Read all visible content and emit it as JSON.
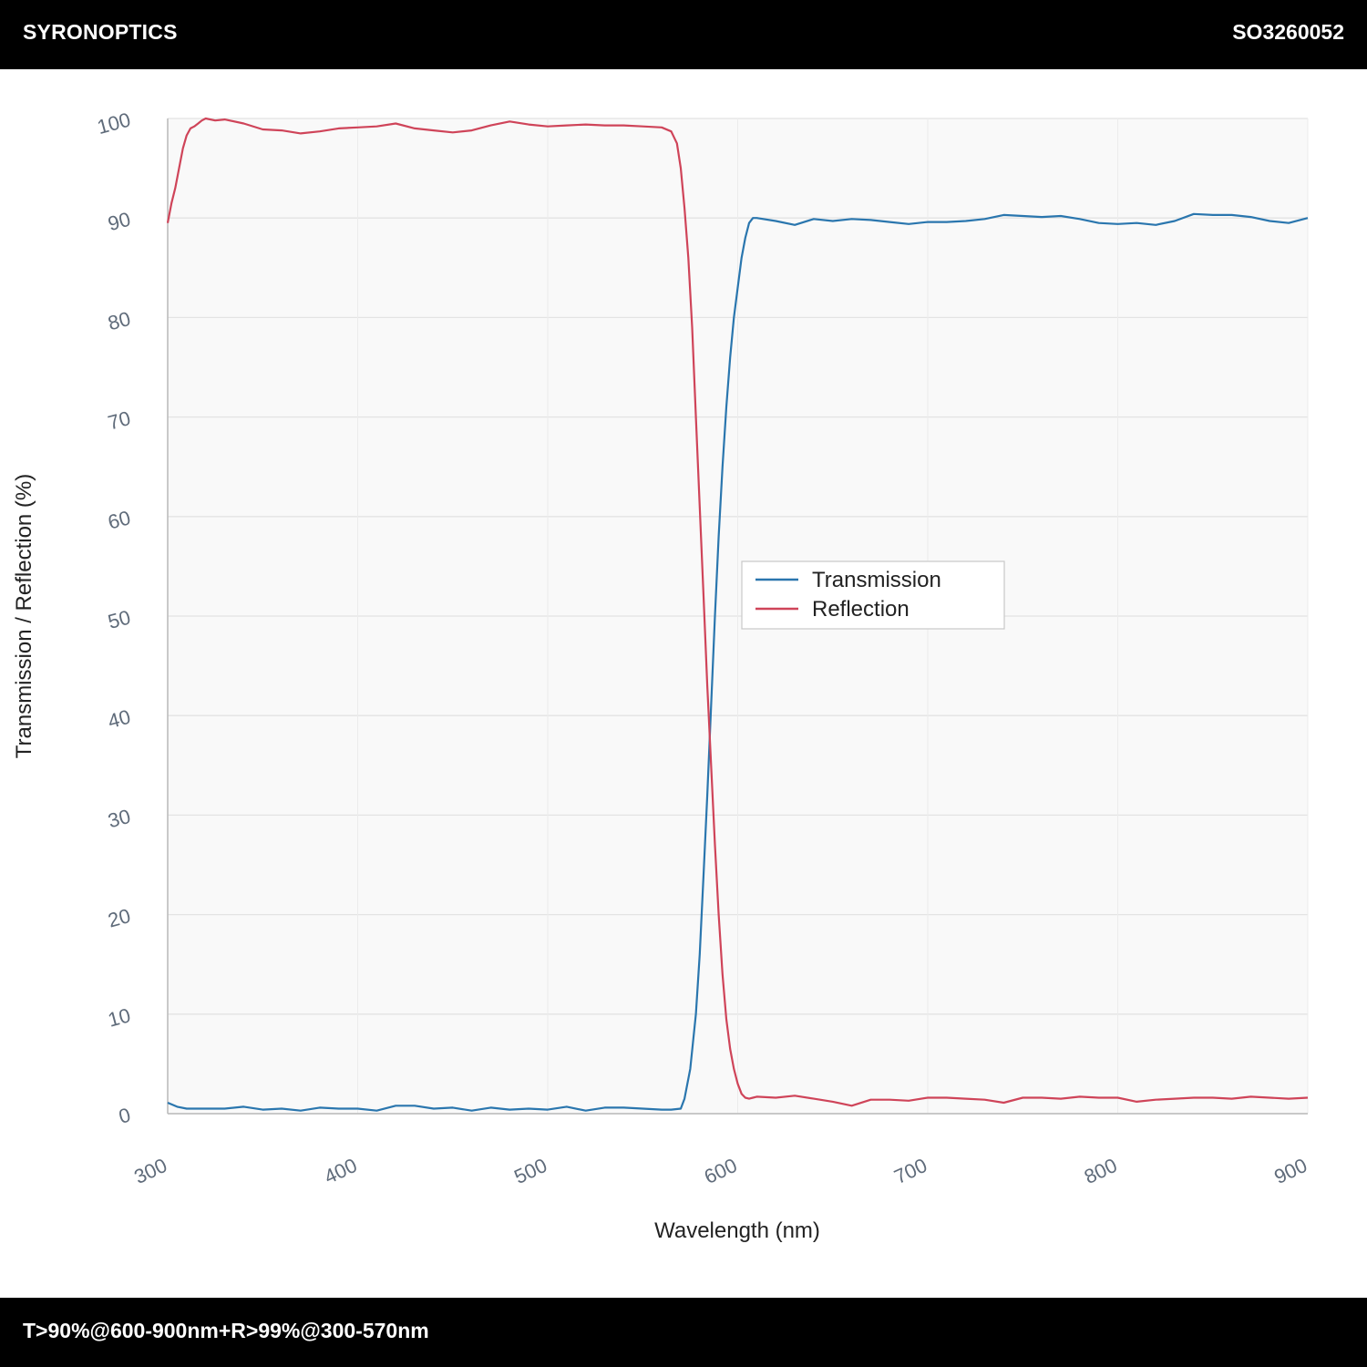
{
  "header": {
    "brand": "SYRONOPTICS",
    "code": "SO3260052"
  },
  "footer": {
    "spec": "T>90%@600-900nm+R>99%@300-570nm"
  },
  "colors": {
    "transmission": "#2a76ae",
    "reflection": "#cf4459",
    "plot_bg": "#f9f9f9",
    "grid": "#e3e3e3"
  },
  "chart_data": {
    "type": "line",
    "title": "",
    "xlabel": "Wavelength (nm)",
    "ylabel": "Transmission / Reflection (%)",
    "xlim": [
      300,
      900
    ],
    "ylim": [
      0,
      100
    ],
    "xticks": [
      300,
      400,
      500,
      600,
      700,
      800,
      900
    ],
    "yticks": [
      0,
      10,
      20,
      30,
      40,
      50,
      60,
      70,
      80,
      90,
      100
    ],
    "grid": true,
    "legend_position": "center-right",
    "series": [
      {
        "name": "Transmission",
        "color": "#2a76ae",
        "x": [
          300,
          305,
          310,
          320,
          330,
          340,
          350,
          360,
          370,
          380,
          390,
          400,
          410,
          420,
          430,
          440,
          450,
          460,
          470,
          480,
          490,
          500,
          510,
          520,
          530,
          540,
          550,
          560,
          565,
          570,
          572,
          575,
          578,
          580,
          582,
          584,
          586,
          588,
          590,
          592,
          594,
          596,
          598,
          600,
          602,
          604,
          606,
          608,
          610,
          620,
          630,
          640,
          650,
          660,
          670,
          680,
          690,
          700,
          710,
          720,
          730,
          740,
          750,
          760,
          770,
          780,
          790,
          800,
          810,
          820,
          830,
          840,
          850,
          860,
          870,
          880,
          890,
          900
        ],
        "values": [
          1.1,
          0.7,
          0.5,
          0.5,
          0.5,
          0.7,
          0.4,
          0.5,
          0.3,
          0.6,
          0.5,
          0.5,
          0.3,
          0.8,
          0.8,
          0.5,
          0.6,
          0.3,
          0.6,
          0.4,
          0.5,
          0.4,
          0.7,
          0.3,
          0.6,
          0.6,
          0.5,
          0.4,
          0.4,
          0.5,
          1.5,
          4.5,
          10,
          16,
          24,
          32,
          41,
          50,
          58,
          65,
          71,
          76,
          80,
          83,
          86,
          88,
          89.5,
          90,
          90,
          89.7,
          89.3,
          89.9,
          89.7,
          89.9,
          89.8,
          89.6,
          89.4,
          89.6,
          89.6,
          89.7,
          89.9,
          90.3,
          90.2,
          90.1,
          90.2,
          89.9,
          89.5,
          89.4,
          89.5,
          89.3,
          89.7,
          90.4,
          90.3,
          90.3,
          90.1,
          89.7,
          89.5,
          90
        ]
      },
      {
        "name": "Reflection",
        "color": "#cf4459",
        "x": [
          300,
          302,
          304,
          306,
          308,
          310,
          312,
          314,
          316,
          318,
          320,
          325,
          330,
          340,
          350,
          360,
          370,
          380,
          390,
          400,
          410,
          420,
          430,
          440,
          450,
          460,
          470,
          480,
          490,
          500,
          510,
          520,
          530,
          540,
          550,
          560,
          565,
          568,
          570,
          572,
          574,
          576,
          578,
          580,
          582,
          584,
          586,
          588,
          590,
          592,
          594,
          596,
          598,
          600,
          602,
          604,
          606,
          608,
          610,
          620,
          630,
          640,
          650,
          660,
          670,
          680,
          690,
          700,
          710,
          720,
          730,
          740,
          750,
          760,
          770,
          780,
          790,
          800,
          810,
          820,
          830,
          840,
          850,
          860,
          870,
          880,
          890,
          900
        ],
        "values": [
          89.5,
          91.5,
          93,
          95,
          97,
          98.3,
          99,
          99.2,
          99.5,
          99.8,
          100,
          99.8,
          99.9,
          99.5,
          98.9,
          98.8,
          98.5,
          98.7,
          99.0,
          99.1,
          99.2,
          99.5,
          99.0,
          98.8,
          98.6,
          98.8,
          99.3,
          99.7,
          99.4,
          99.2,
          99.3,
          99.4,
          99.3,
          99.3,
          99.2,
          99.1,
          98.7,
          97.5,
          95,
          91,
          86,
          79,
          70,
          61,
          52,
          43,
          35,
          27,
          20,
          14,
          9.5,
          6.5,
          4.5,
          3.0,
          2.0,
          1.6,
          1.5,
          1.6,
          1.7,
          1.6,
          1.8,
          1.5,
          1.2,
          0.8,
          1.4,
          1.4,
          1.3,
          1.6,
          1.6,
          1.5,
          1.4,
          1.1,
          1.6,
          1.6,
          1.5,
          1.7,
          1.6,
          1.6,
          1.2,
          1.4,
          1.5,
          1.6,
          1.6,
          1.5,
          1.7,
          1.6,
          1.5,
          1.6
        ]
      }
    ]
  }
}
